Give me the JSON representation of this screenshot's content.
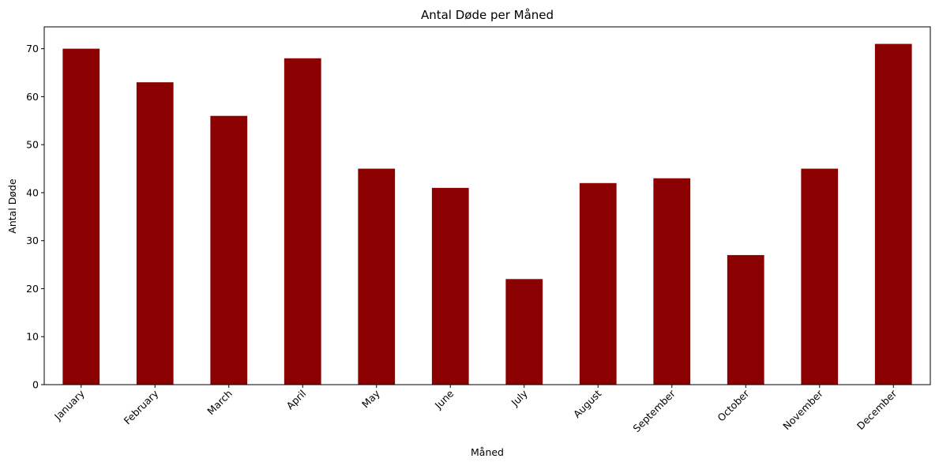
{
  "chart_data": {
    "type": "bar",
    "title": "Antal Døde per Måned",
    "xlabel": "Måned",
    "ylabel": "Antal Døde",
    "categories": [
      "January",
      "February",
      "March",
      "April",
      "May",
      "June",
      "July",
      "August",
      "September",
      "October",
      "November",
      "December"
    ],
    "values": [
      70,
      63,
      56,
      68,
      45,
      41,
      22,
      42,
      43,
      27,
      45,
      71
    ],
    "ylim": [
      0,
      74.55
    ],
    "yticks": [
      0,
      10,
      20,
      30,
      40,
      50,
      60,
      70
    ],
    "bar_color": "#8b0000",
    "grid": false,
    "legend": "none"
  }
}
